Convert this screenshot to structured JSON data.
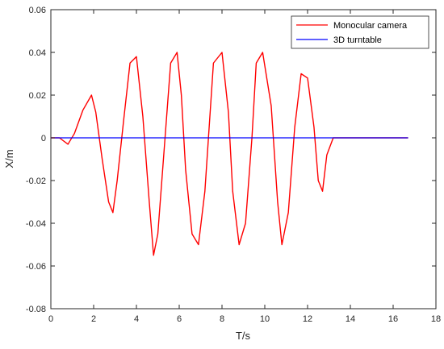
{
  "chart_data": {
    "type": "line",
    "title": "",
    "xlabel": "T/s",
    "ylabel": "X/m",
    "xlim": [
      0,
      18
    ],
    "ylim": [
      -0.08,
      0.06
    ],
    "grid": false,
    "legend_position": "top-right",
    "x_ticks": [
      "0",
      "2",
      "4",
      "6",
      "8",
      "10",
      "12",
      "14",
      "16",
      "18"
    ],
    "y_ticks": [
      "-0.08",
      "-0.06",
      "-0.04",
      "-0.02",
      "0",
      "0.02",
      "0.04",
      "0.06"
    ],
    "series": [
      {
        "name": "Monocular camera",
        "color": "#ff0000",
        "x": [
          0,
          0.4,
          0.8,
          1.1,
          1.5,
          1.9,
          2.1,
          2.4,
          2.7,
          2.9,
          3.1,
          3.4,
          3.7,
          4.0,
          4.3,
          4.6,
          4.8,
          5.0,
          5.3,
          5.6,
          5.9,
          6.1,
          6.3,
          6.6,
          6.9,
          7.2,
          7.4,
          7.6,
          8.0,
          8.3,
          8.5,
          8.8,
          9.1,
          9.4,
          9.6,
          9.9,
          10.3,
          10.6,
          10.8,
          11.1,
          11.4,
          11.7,
          12.0,
          12.3,
          12.5,
          12.7,
          12.9,
          13.2,
          13.6,
          14.0,
          14.5,
          15.0,
          15.5,
          16.0,
          16.7
        ],
        "values": [
          0,
          0,
          -0.003,
          0.002,
          0.013,
          0.02,
          0.012,
          -0.01,
          -0.03,
          -0.035,
          -0.02,
          0.008,
          0.035,
          0.038,
          0.01,
          -0.03,
          -0.055,
          -0.045,
          -0.005,
          0.035,
          0.04,
          0.02,
          -0.015,
          -0.045,
          -0.05,
          -0.025,
          0.005,
          0.035,
          0.04,
          0.012,
          -0.025,
          -0.05,
          -0.04,
          0,
          0.035,
          0.04,
          0.015,
          -0.03,
          -0.05,
          -0.035,
          0.005,
          0.03,
          0.028,
          0.005,
          -0.02,
          -0.025,
          -0.008,
          0,
          0,
          0,
          0,
          0,
          0,
          0,
          0
        ]
      },
      {
        "name": "3D turntable",
        "color": "#0000ff",
        "x": [
          0,
          16.7
        ],
        "values": [
          0,
          0
        ]
      }
    ]
  }
}
